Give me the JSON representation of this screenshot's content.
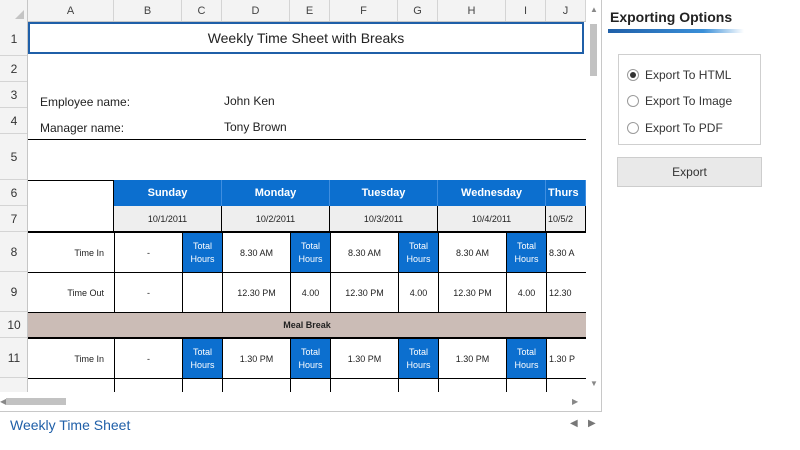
{
  "columns": [
    "A",
    "B",
    "C",
    "D",
    "E",
    "F",
    "G",
    "H",
    "I",
    "J"
  ],
  "rows": [
    "1",
    "2",
    "3",
    "4",
    "5",
    "6",
    "7",
    "8",
    "9",
    "10",
    "11"
  ],
  "title": "Weekly Time Sheet with Breaks",
  "employee": {
    "label": "Employee name:",
    "value": "John Ken"
  },
  "manager": {
    "label": "Manager name:",
    "value": "Tony Brown"
  },
  "days": [
    "Sunday",
    "Monday",
    "Tuesday",
    "Wednesday",
    "Thurs"
  ],
  "dates": [
    "10/1/2011",
    "10/2/2011",
    "10/3/2011",
    "10/4/2011",
    "10/5/2"
  ],
  "row_labels": {
    "time_in": "Time In",
    "time_out": "Time Out"
  },
  "total_hours_label": "Total Hours",
  "meal_break": "Meal Break",
  "time_in_1": [
    "-",
    "8.30 AM",
    "8.30 AM",
    "8.30 AM",
    "8.30 A"
  ],
  "time_out_1": [
    "-",
    "12.30 PM",
    "12.30 PM",
    "12.30 PM",
    "12.30"
  ],
  "totals_1": [
    "",
    "4.00",
    "4.00",
    "4.00"
  ],
  "time_in_2": [
    "-",
    "1.30 PM",
    "1.30 PM",
    "1.30 PM",
    "1.30 P"
  ],
  "sheet_tab": "Weekly Time Sheet",
  "panel": {
    "title": "Exporting Options",
    "options": [
      {
        "label": "Export To HTML",
        "checked": true
      },
      {
        "label": "Export To Image",
        "checked": false
      },
      {
        "label": "Export To PDF",
        "checked": false
      }
    ],
    "export_button": "Export"
  },
  "colors": {
    "accent": "#0c6fcf",
    "meal": "#cbbcb6",
    "title_border": "#1f5fa8"
  }
}
